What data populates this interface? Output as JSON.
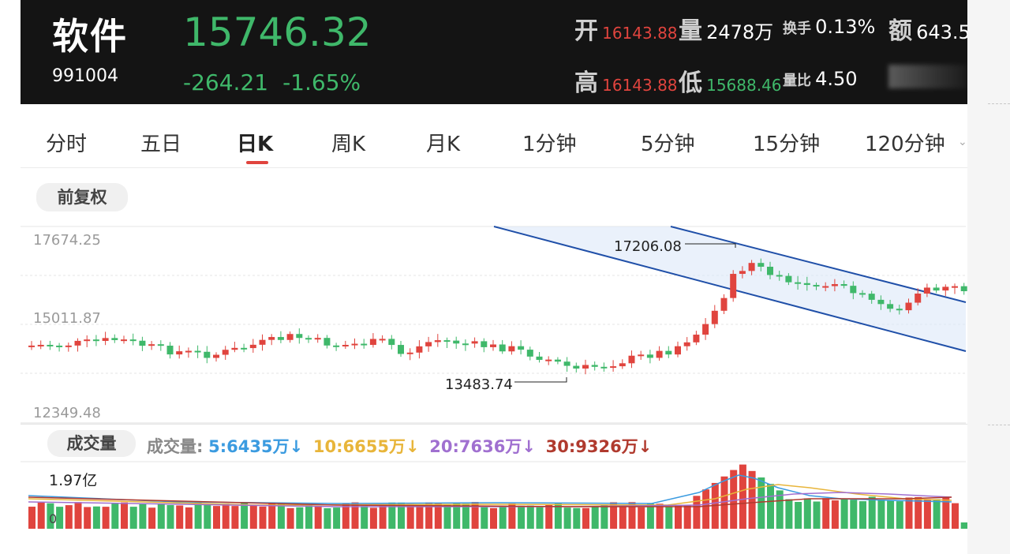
{
  "header": {
    "name": "软件",
    "code": "991004",
    "price": "15746.32",
    "change": "-264.21",
    "change_pct": "-1.65%",
    "open_label": "开",
    "open": "16143.88",
    "volume_label": "量",
    "volume": "2478万",
    "turnover_label": "换手",
    "turnover": "0.13%",
    "amount_label": "额",
    "amount": "643.5",
    "high_label": "高",
    "high": "16143.88",
    "low_label": "低",
    "low": "15688.46",
    "volratio_label": "量比",
    "volratio": "4.50"
  },
  "tabs": [
    {
      "label": "分时"
    },
    {
      "label": "五日"
    },
    {
      "label": "日K",
      "active": true
    },
    {
      "label": "周K"
    },
    {
      "label": "月K"
    },
    {
      "label": "1分钟"
    },
    {
      "label": "5分钟"
    },
    {
      "label": "15分钟"
    },
    {
      "label": "120分钟"
    }
  ],
  "adjust_label": "前复权",
  "y_axis": {
    "top": "17674.25",
    "mid": "15011.87",
    "bottom": "12349.48"
  },
  "markers": {
    "high": "17206.08",
    "low": "13483.74"
  },
  "volume_section": {
    "title": "成交量",
    "legend_prefix": "成交量:",
    "ma": [
      {
        "label": "5:6435万",
        "arrow": "↓",
        "color": "#3b9be0"
      },
      {
        "label": "10:6655万",
        "arrow": "↓",
        "color": "#e8b53a"
      },
      {
        "label": "20:7636万",
        "arrow": "↓",
        "color": "#a070d0"
      },
      {
        "label": "30:9326万",
        "arrow": "↓",
        "color": "#b03a2e"
      }
    ],
    "max_label": "1.97亿",
    "zero_label": "0"
  },
  "colors": {
    "up": "#e0443e",
    "down": "#3fb86a",
    "channel": "#1f4fa8"
  }
}
